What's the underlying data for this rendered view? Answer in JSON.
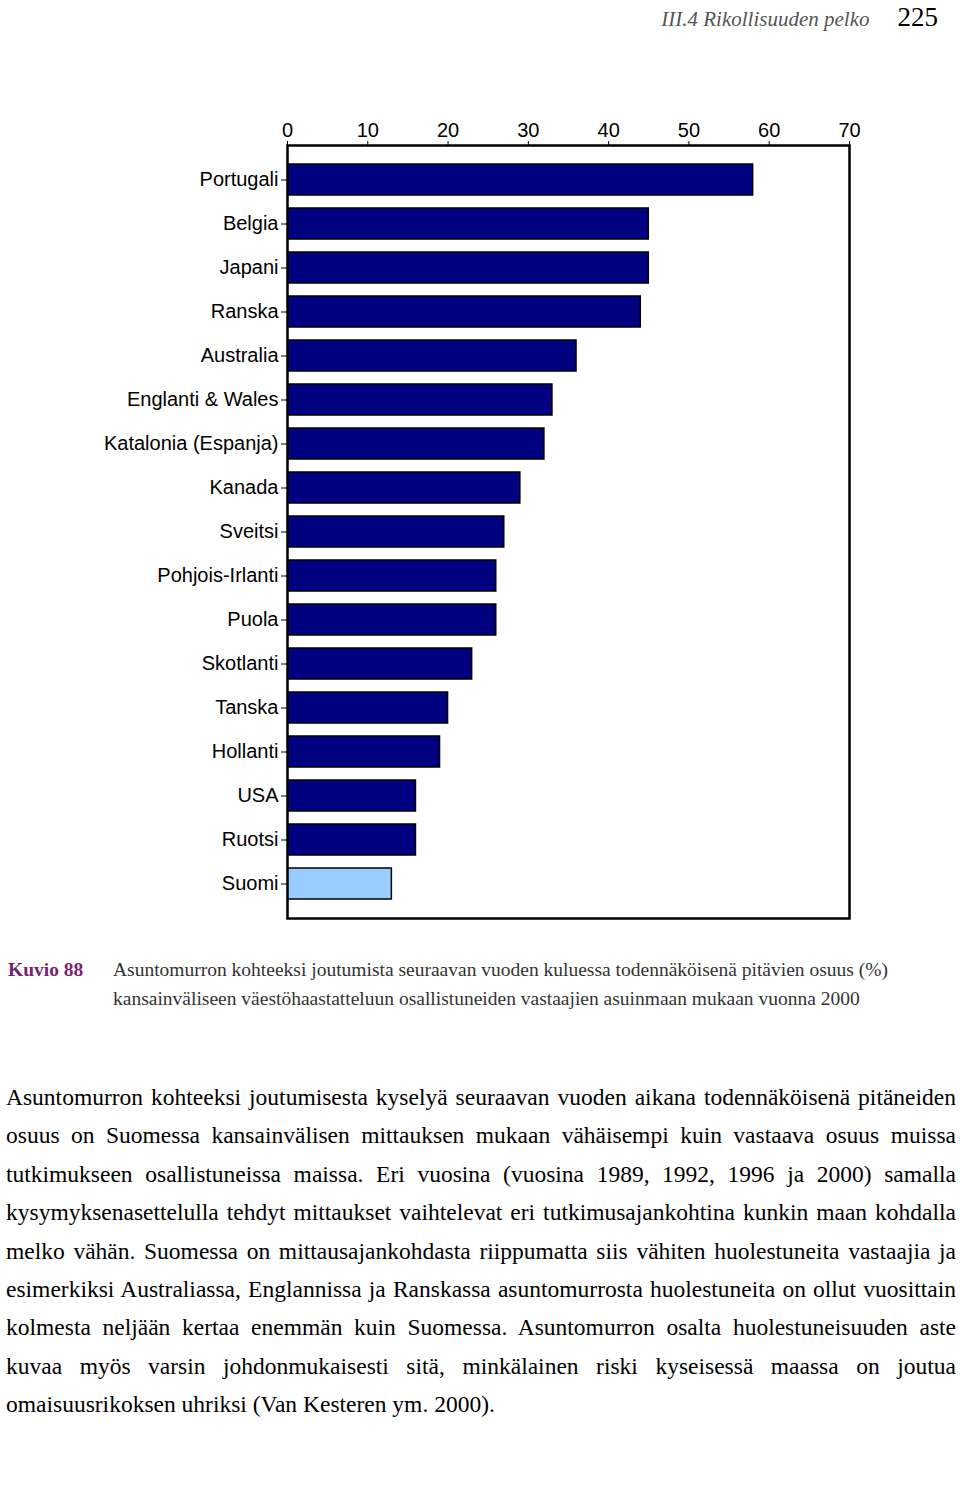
{
  "header": {
    "section": "III.4 Rikollisuuden pelko",
    "page": "225"
  },
  "chart_data": {
    "type": "bar",
    "orientation": "horizontal",
    "categories": [
      "Portugali",
      "Belgia",
      "Japani",
      "Ranska",
      "Australia",
      "Englanti & Wales",
      "Katalonia (Espanja)",
      "Kanada",
      "Sveitsi",
      "Pohjois-Irlanti",
      "Puola",
      "Skotlanti",
      "Tanska",
      "Hollanti",
      "USA",
      "Ruotsi",
      "Suomi"
    ],
    "values": [
      58,
      45,
      45,
      44,
      36,
      33,
      32,
      29,
      27,
      26,
      26,
      23,
      20,
      19,
      16,
      16,
      13
    ],
    "colors": [
      "#000080",
      "#000080",
      "#000080",
      "#000080",
      "#000080",
      "#000080",
      "#000080",
      "#000080",
      "#000080",
      "#000080",
      "#000080",
      "#000080",
      "#000080",
      "#000080",
      "#000080",
      "#000080",
      "#99ccff"
    ],
    "xlim": [
      0,
      70
    ],
    "xticks": [
      0,
      10,
      20,
      30,
      40,
      50,
      60,
      70
    ],
    "grid": false
  },
  "caption": {
    "label": "Kuvio 88",
    "text": "Asuntomurron kohteeksi joutumista seuraavan vuoden kuluessa todennäköisenä pitävien osuus (%) kansainväliseen väestöhaastatteluun osallistuneiden vastaajien asuinmaan mukaan vuonna 2000"
  },
  "body": "Asuntomurron kohteeksi joutumisesta kyselyä seuraavan vuoden aikana todennäköisenä pitäneiden osuus on Suomessa kansainvälisen mittauksen mukaan vähäisempi kuin vastaava osuus muissa tutkimukseen osallistuneissa maissa. Eri vuosina (vuosina 1989, 1992, 1996 ja 2000) samalla kysymyksenasettelulla tehdyt mittaukset vaihtelevat eri tutkimusajankohtina kunkin maan kohdalla melko vähän. Suomessa on mittausajankohdasta riippumatta siis vähiten huolestuneita vastaajia ja esimerkiksi Australiassa, Englannissa ja Ranskassa asuntomurrosta huolestuneita on ollut vuosittain kolmesta neljään kertaa enemmän kuin Suomessa. Asuntomurron osalta huolestuneisuuden aste kuvaa myös varsin johdonmukaisesti sitä, minkälainen riski kyseisessä maassa on joutua omaisuusrikoksen uhriksi (Van Kesteren ym. 2000)."
}
